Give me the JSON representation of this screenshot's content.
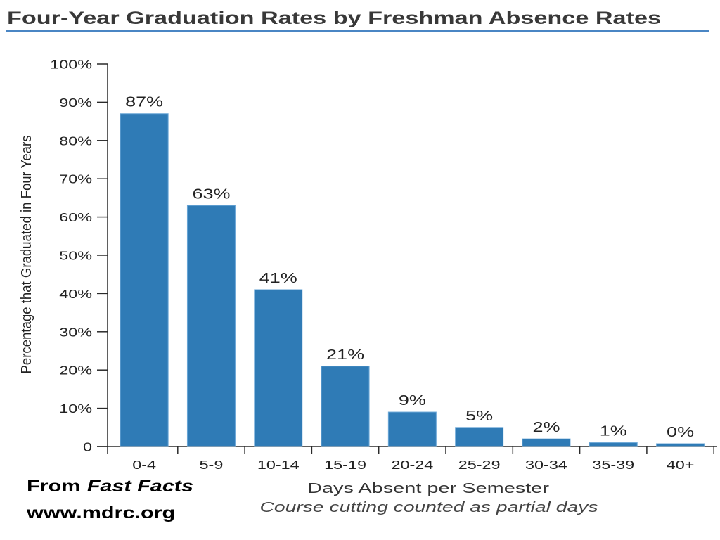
{
  "colors": {
    "bar": "#2f7bb6",
    "title_rule": "#4a86c4",
    "axis": "#2a2a2a"
  },
  "source": {
    "prefix": "From",
    "name": "Fast Facts",
    "url": "www.mdrc.org"
  },
  "chart_data": {
    "type": "bar",
    "title": "Four-Year Graduation Rates by Freshman Absence Rates",
    "xlabel": "Days Absent per Semester",
    "xlabel_note": "Course cutting counted as partial days",
    "ylabel": "Percentage that Graduated in Four Years",
    "categories": [
      "0-4",
      "5-9",
      "10-14",
      "15-19",
      "20-24",
      "25-29",
      "30-34",
      "35-39",
      "40+"
    ],
    "values": [
      87,
      63,
      41,
      21,
      9,
      5,
      2,
      1,
      0
    ],
    "data_labels": [
      "87%",
      "63%",
      "41%",
      "21%",
      "9%",
      "5%",
      "2%",
      "1%",
      "0%"
    ],
    "yticks": [
      0,
      10,
      20,
      30,
      40,
      50,
      60,
      70,
      80,
      90,
      100
    ],
    "ytick_labels": [
      "0",
      "10%",
      "20%",
      "30%",
      "40%",
      "50%",
      "60%",
      "70%",
      "80%",
      "90%",
      "100%"
    ],
    "ylim": [
      0,
      100
    ],
    "grid": false
  }
}
